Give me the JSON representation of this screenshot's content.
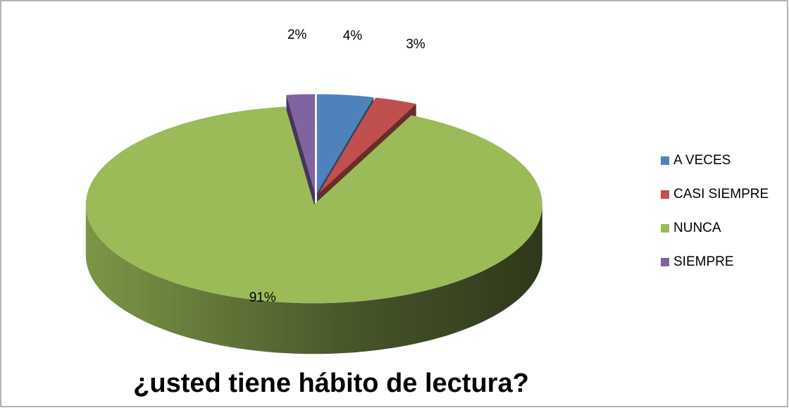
{
  "chart_data": {
    "type": "pie",
    "title": "¿usted tiene hábito de lectura?",
    "categories": [
      "A VECES",
      "CASI SIEMPRE",
      "NUNCA",
      "SIEMPRE"
    ],
    "values": [
      4,
      3,
      91,
      2
    ],
    "value_labels": [
      "4%",
      "3%",
      "91%",
      "2%"
    ],
    "colors": [
      "#4f81bd",
      "#c0504d",
      "#9bbb59",
      "#8064a2"
    ],
    "legend": "right"
  }
}
